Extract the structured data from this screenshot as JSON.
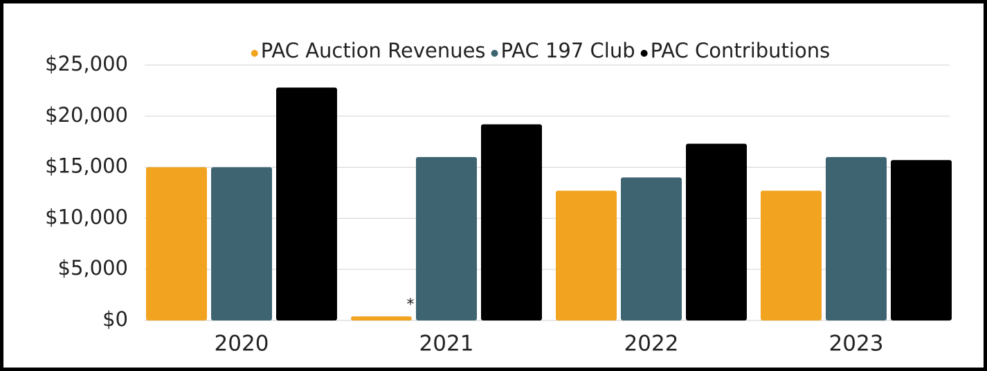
{
  "chart_data": {
    "type": "bar",
    "categories": [
      "2020",
      "2021",
      "2022",
      "2023"
    ],
    "series": [
      {
        "name": "PAC Auction Revenues",
        "color": "#f2a31f",
        "values": [
          15000,
          400,
          12700,
          12700
        ]
      },
      {
        "name": "PAC 197 Club",
        "color": "#3d6470",
        "values": [
          15000,
          16000,
          14000,
          16000
        ]
      },
      {
        "name": "PAC Contributions",
        "color": "#000000",
        "values": [
          22800,
          19200,
          17300,
          15700
        ]
      }
    ],
    "annotation": "*",
    "ylim": [
      0,
      25000
    ],
    "yticks": [
      {
        "value": 0,
        "label": "$0"
      },
      {
        "value": 5000,
        "label": "$5,000"
      },
      {
        "value": 10000,
        "label": "$10,000"
      },
      {
        "value": 15000,
        "label": "$15,000"
      },
      {
        "value": 20000,
        "label": "$20,000"
      },
      {
        "value": 25000,
        "label": "$25,000"
      }
    ],
    "grid": true,
    "legend": "top"
  }
}
